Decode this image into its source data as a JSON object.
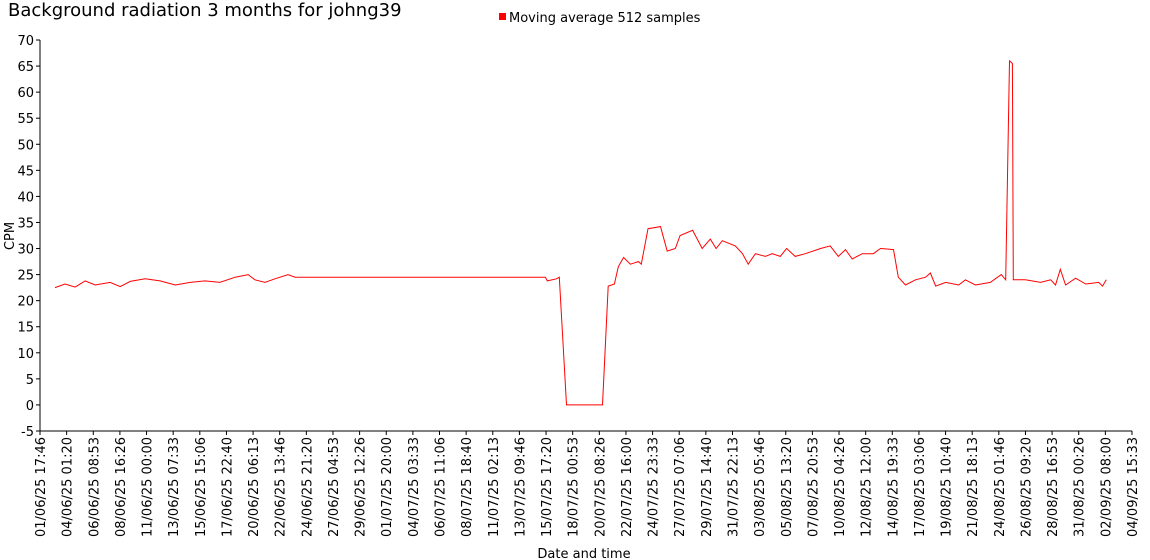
{
  "chart_data": {
    "type": "line",
    "title": "Background radiation 3 months for johng39",
    "xlabel": "Date and time",
    "ylabel": "CPM",
    "legend": "top",
    "x": [
      "03/06/25 01:00",
      "03/06/25 22:00",
      "04/06/25 19:00",
      "05/06/25 16:00",
      "06/06/25 13:00",
      "07/06/25 20:00",
      "08/06/25 17:00",
      "09/06/25 14:00",
      "10/06/25 21:00",
      "12/06/25 04:00",
      "13/06/25 12:00",
      "14/06/25 19:00",
      "16/06/25 02:00",
      "17/06/25 09:00",
      "18/06/25 17:00",
      "19/06/25 20:00",
      "20/06/25 10:00",
      "21/06/25 07:00",
      "22/06/25 04:00",
      "23/06/25 07:00",
      "23/06/25 22:00",
      "15/07/25 16:00",
      "15/07/25 20:00",
      "16/07/25 15:00",
      "16/07/25 21:00",
      "17/07/25 12:00",
      "20/07/25 15:00",
      "21/07/25 03:00",
      "21/07/25 16:00",
      "22/07/25 00:00",
      "22/07/25 11:00",
      "23/07/25 01:00",
      "23/07/25 18:00",
      "24/07/25 00:00",
      "24/07/25 14:00",
      "25/07/25 16:00",
      "26/07/25 06:00",
      "26/07/25 23:00",
      "27/07/25 09:00",
      "28/07/25 11:00",
      "29/07/25 07:00",
      "30/07/25 00:00",
      "30/07/25 12:00",
      "31/07/25 01:00",
      "01/08/25 04:00",
      "01/08/25 19:00",
      "02/08/25 07:00",
      "02/08/25 22:00",
      "03/08/25 19:00",
      "04/08/25 09:00",
      "05/08/25 02:00",
      "05/08/25 15:00",
      "06/08/25 09:00",
      "07/08/25 06:00",
      "08/08/25 14:00",
      "09/08/25 10:00",
      "10/08/25 03:00",
      "10/08/25 18:00",
      "11/08/25 08:00",
      "12/08/25 05:00",
      "13/08/25 04:00",
      "13/08/25 19:00",
      "14/08/25 22:00",
      "15/08/25 08:00",
      "15/08/25 23:00",
      "16/08/25 20:00",
      "17/08/25 17:00",
      "18/08/25 03:00",
      "18/08/25 14:00",
      "19/08/25 11:00",
      "20/08/25 14:00",
      "21/08/25 04:00",
      "22/08/25 01:00",
      "23/08/25 08:00",
      "24/08/25 07:00",
      "24/08/25 16:00",
      "25/08/25 00:00",
      "25/08/25 06:00",
      "25/08/25 08:00",
      "26/08/25 09:00",
      "27/08/25 17:00",
      "28/08/25 14:00",
      "29/08/25 00:00",
      "29/08/25 10:00",
      "29/08/25 21:00",
      "30/08/25 18:00",
      "31/08/25 15:00",
      "01/09/25 18:00",
      "02/09/25 02:00",
      "02/09/25 10:00"
    ],
    "series": [
      {
        "name": "Moving average 512 samples",
        "color": "#ff0000",
        "values": [
          22.5,
          23.2,
          22.6,
          23.8,
          23,
          23.5,
          22.7,
          23.7,
          24.2,
          23.8,
          23,
          23.5,
          23.8,
          23.5,
          24.5,
          25,
          24,
          23.5,
          24.2,
          25,
          24.5,
          24.5,
          23.8,
          24.2,
          24.5,
          0,
          0,
          22.8,
          23.2,
          26.5,
          28.3,
          27,
          27.5,
          27,
          33.8,
          34.2,
          29.5,
          30,
          32.5,
          33.5,
          30,
          31.8,
          30,
          31.5,
          30.5,
          29,
          27,
          29,
          28.5,
          29,
          28.5,
          30,
          28.5,
          29,
          30,
          30.5,
          28.5,
          29.8,
          28,
          29,
          29,
          30,
          29.8,
          24.5,
          23,
          24,
          24.5,
          25.3,
          22.8,
          23.5,
          23,
          24,
          23,
          23.5,
          25,
          24,
          66,
          65.5,
          24,
          24,
          23.5,
          24,
          23,
          26,
          23,
          24.3,
          23.2,
          23.5,
          22.8,
          24
        ]
      }
    ],
    "xlim": [
      "01/06/25 17:46",
      "04/09/25 15:33"
    ],
    "xticks": [
      "01/06/25 17:46",
      "04/06/25 01:20",
      "06/06/25 08:53",
      "08/06/25 16:26",
      "11/06/25 00:00",
      "13/06/25 07:33",
      "15/06/25 15:06",
      "17/06/25 22:40",
      "20/06/25 06:13",
      "22/06/25 13:46",
      "24/06/25 21:20",
      "27/06/25 04:53",
      "29/06/25 12:26",
      "01/07/25 20:00",
      "04/07/25 03:33",
      "06/07/25 11:06",
      "08/07/25 18:40",
      "11/07/25 02:13",
      "13/07/25 09:46",
      "15/07/25 17:20",
      "18/07/25 00:53",
      "20/07/25 08:26",
      "22/07/25 16:00",
      "24/07/25 23:33",
      "27/07/25 07:06",
      "29/07/25 14:40",
      "31/07/25 22:13",
      "03/08/25 05:46",
      "05/08/25 13:20",
      "07/08/25 20:53",
      "10/08/25 04:26",
      "12/08/25 12:00",
      "14/08/25 19:33",
      "17/08/25 03:06",
      "19/08/25 10:40",
      "21/08/25 18:13",
      "24/08/25 01:46",
      "26/08/25 09:20",
      "28/08/25 16:53",
      "31/08/25 00:26",
      "02/09/25 08:00",
      "04/09/25 15:33"
    ],
    "ylim": [
      -5,
      70
    ],
    "yticks": [
      -5,
      0,
      5,
      10,
      15,
      20,
      25,
      30,
      35,
      40,
      45,
      50,
      55,
      60,
      65,
      70
    ]
  }
}
